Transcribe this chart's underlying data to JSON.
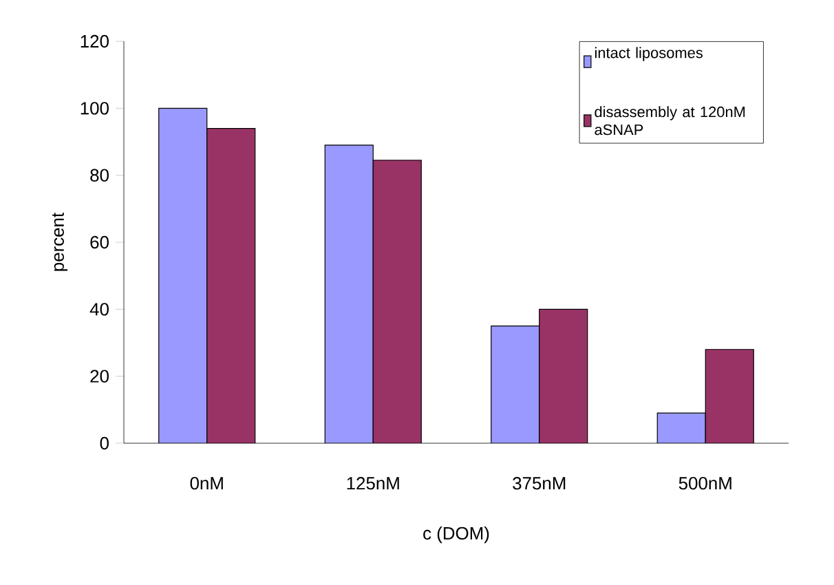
{
  "chart_data": {
    "type": "bar",
    "xlabel": "c (DOM)",
    "ylabel": "percent",
    "categories": [
      "0nM",
      "125nM",
      "375nM",
      "500nM"
    ],
    "series": [
      {
        "name": "intact liposomes",
        "color": "#9999ff",
        "values": [
          100,
          89,
          35,
          9
        ]
      },
      {
        "name": "disassembly at 120nM aSNAP",
        "color": "#993366",
        "values": [
          94,
          84.5,
          40,
          28
        ]
      }
    ],
    "ylim": [
      0,
      120
    ],
    "yticks": [
      0,
      20,
      40,
      60,
      80,
      100,
      120
    ],
    "grid": false,
    "legend": "top right"
  }
}
